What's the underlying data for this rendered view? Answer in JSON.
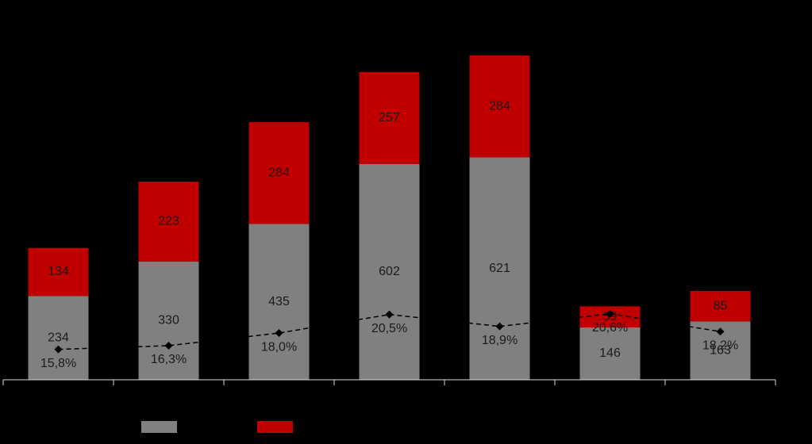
{
  "chart_data": {
    "type": "stacked-bar-line",
    "categories": [
      null,
      null,
      null,
      null,
      null,
      null,
      null
    ],
    "series": [
      {
        "color": "#808080",
        "values": [
          234,
          330,
          435,
          602,
          621,
          146,
          163
        ]
      },
      {
        "color": "#c00000",
        "values": [
          134,
          223,
          284,
          257,
          284,
          59,
          85
        ]
      },
      {
        "type": "line",
        "axis": "y2",
        "color": "#000000",
        "dashed": true,
        "marker": "diamond",
        "values": [
          15.8,
          16.3,
          18.0,
          20.5,
          18.9,
          20.6,
          18.2
        ],
        "value_labels": [
          "15,8%",
          "16,3%",
          "18,0%",
          "20,5%",
          "18,9%",
          "20,6%",
          "18,2%"
        ]
      }
    ],
    "ylim": [
      0,
      1060
    ],
    "y2lim": [
      11.7,
      62.9
    ]
  }
}
